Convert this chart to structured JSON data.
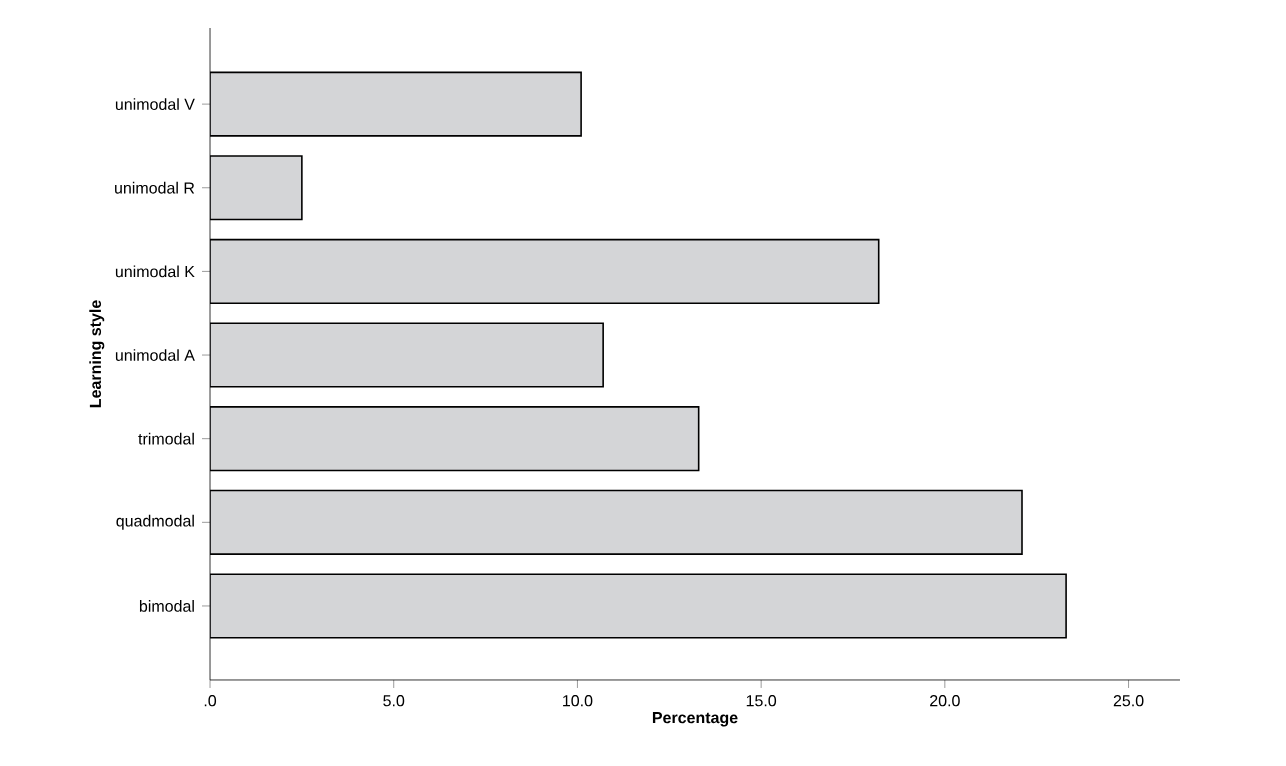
{
  "chart_data": {
    "type": "bar",
    "orientation": "horizontal",
    "xlabel": "Percentage",
    "ylabel": "Learning style",
    "categories": [
      "unimodal V",
      "unimodal R",
      "unimodal K",
      "unimodal A",
      "trimodal",
      "quadmodal",
      "bimodal"
    ],
    "values": [
      10.1,
      2.5,
      18.2,
      10.7,
      13.3,
      22.1,
      23.3
    ],
    "color": "#d4d5d7",
    "xlim": [
      0,
      26.4
    ],
    "xticks": [
      {
        "value": 0,
        "label": ".0"
      },
      {
        "value": 5,
        "label": "5.0"
      },
      {
        "value": 10,
        "label": "10.0"
      },
      {
        "value": 15,
        "label": "15.0"
      },
      {
        "value": 20,
        "label": "20.0"
      },
      {
        "value": 25,
        "label": "25.0"
      }
    ],
    "grid": false
  }
}
